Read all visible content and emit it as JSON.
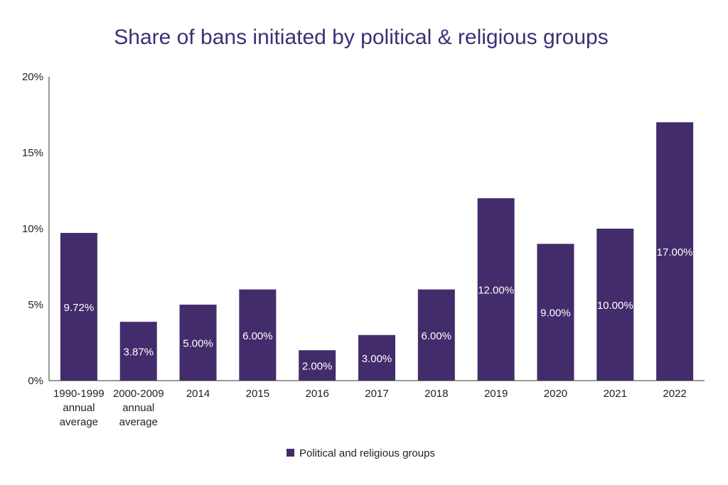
{
  "chart_data": {
    "type": "bar",
    "title": "Share of bans initiated by political & religious groups",
    "categories": [
      [
        "1990-1999",
        "annual",
        "average"
      ],
      [
        "2000-2009",
        "annual",
        "average"
      ],
      [
        "2014"
      ],
      [
        "2015"
      ],
      [
        "2016"
      ],
      [
        "2017"
      ],
      [
        "2018"
      ],
      [
        "2019"
      ],
      [
        "2020"
      ],
      [
        "2021"
      ],
      [
        "2022"
      ]
    ],
    "series": [
      {
        "name": "Political and religious groups",
        "values": [
          9.72,
          3.87,
          5.0,
          6.0,
          2.0,
          3.0,
          6.0,
          12.0,
          9.0,
          10.0,
          17.0
        ],
        "labels": [
          "9.72%",
          "3.87%",
          "5.00%",
          "6.00%",
          "2.00%",
          "3.00%",
          "6.00%",
          "12.00%",
          "9.00%",
          "10.00%",
          "17.00%"
        ]
      }
    ],
    "ylim": [
      0,
      20
    ],
    "yticks": [
      0,
      5,
      10,
      15,
      20
    ],
    "ytick_labels": [
      "0%",
      "5%",
      "10%",
      "15%",
      "20%"
    ],
    "grid": false,
    "legend_position": "bottom",
    "colors": {
      "bar": "#432c6b",
      "title": "#3f2f74",
      "axis": "#333333"
    }
  }
}
